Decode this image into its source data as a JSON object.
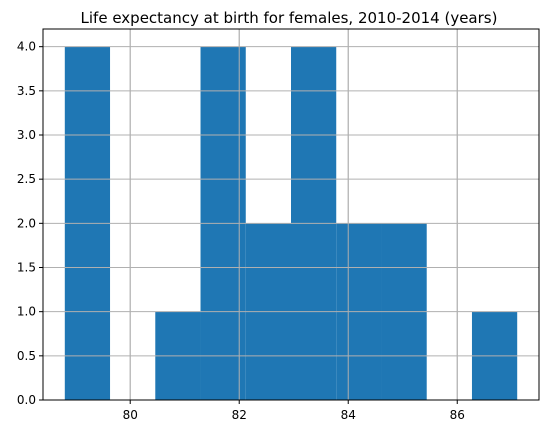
{
  "chart_data": {
    "type": "bar",
    "subtype": "histogram",
    "title": "Life expectancy at birth for females, 2010-2014 (years)",
    "xlabel": "",
    "ylabel": "",
    "bins": [
      {
        "x0": 78.8,
        "x1": 79.63,
        "count": 4
      },
      {
        "x0": 79.63,
        "x1": 80.46,
        "count": 0
      },
      {
        "x0": 80.46,
        "x1": 81.29,
        "count": 1
      },
      {
        "x0": 81.29,
        "x1": 82.12,
        "count": 4
      },
      {
        "x0": 82.12,
        "x1": 82.95,
        "count": 2
      },
      {
        "x0": 82.95,
        "x1": 83.78,
        "count": 4
      },
      {
        "x0": 83.78,
        "x1": 84.61,
        "count": 2
      },
      {
        "x0": 84.61,
        "x1": 85.44,
        "count": 2
      },
      {
        "x0": 85.44,
        "x1": 86.27,
        "count": 0
      },
      {
        "x0": 86.27,
        "x1": 87.1,
        "count": 1
      }
    ],
    "xlim": [
      78.4,
      87.5
    ],
    "ylim": [
      0,
      4.2
    ],
    "x_ticks": [
      80,
      82,
      84,
      86
    ],
    "x_tick_labels": [
      "80",
      "82",
      "84",
      "86"
    ],
    "y_ticks": [
      0,
      0.5,
      1,
      1.5,
      2,
      2.5,
      3,
      3.5,
      4
    ],
    "y_tick_labels": [
      "0.0",
      "0.5",
      "1.0",
      "1.5",
      "2.0",
      "2.5",
      "3.0",
      "3.5",
      "4.0"
    ],
    "grid": true,
    "bar_color": "#1f77b4"
  }
}
